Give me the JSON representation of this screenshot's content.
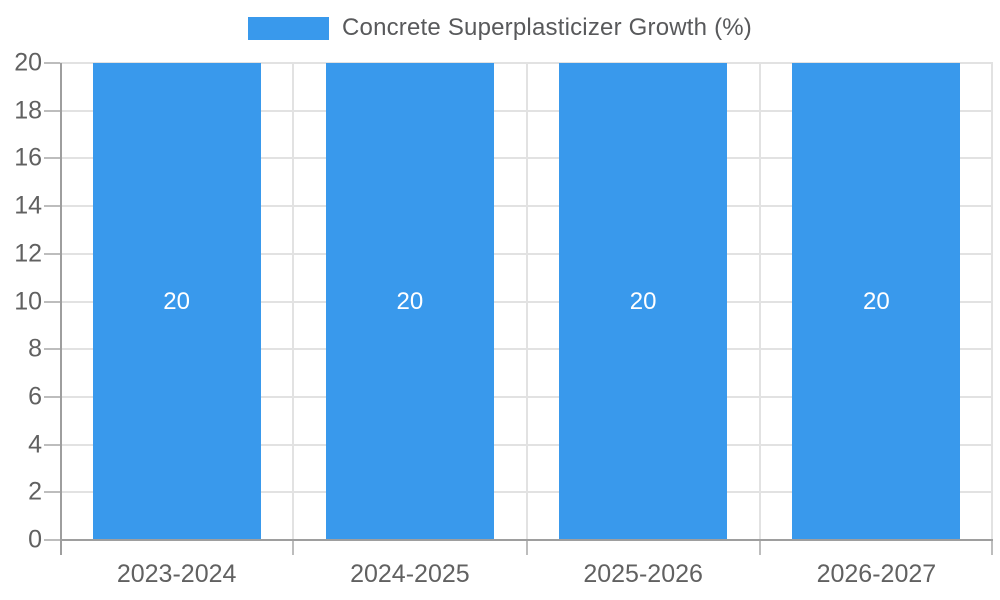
{
  "chart_data": {
    "type": "bar",
    "title": "Concrete Superplasticizer Growth (%)",
    "categories": [
      "2023-2024",
      "2024-2025",
      "2025-2026",
      "2026-2027"
    ],
    "values": [
      20,
      20,
      20,
      20
    ],
    "bar_labels": [
      "20",
      "20",
      "20",
      "20"
    ],
    "xlabel": "",
    "ylabel": "",
    "ylim": [
      0,
      20
    ],
    "yticks": [
      0,
      2,
      4,
      6,
      8,
      10,
      12,
      14,
      16,
      18,
      20
    ],
    "grid": true,
    "legend_position": "top-center",
    "style": {
      "bar_color": "#3999EC",
      "bar_label_color": "#FFFFFF",
      "grid_color": "#E2E2E2",
      "axis_line_color": "#9E9E9E",
      "tick_color": "#BDBDBD",
      "axis_label_color": "#616161",
      "title_color": "#58595B",
      "background": "#FFFFFF"
    }
  }
}
